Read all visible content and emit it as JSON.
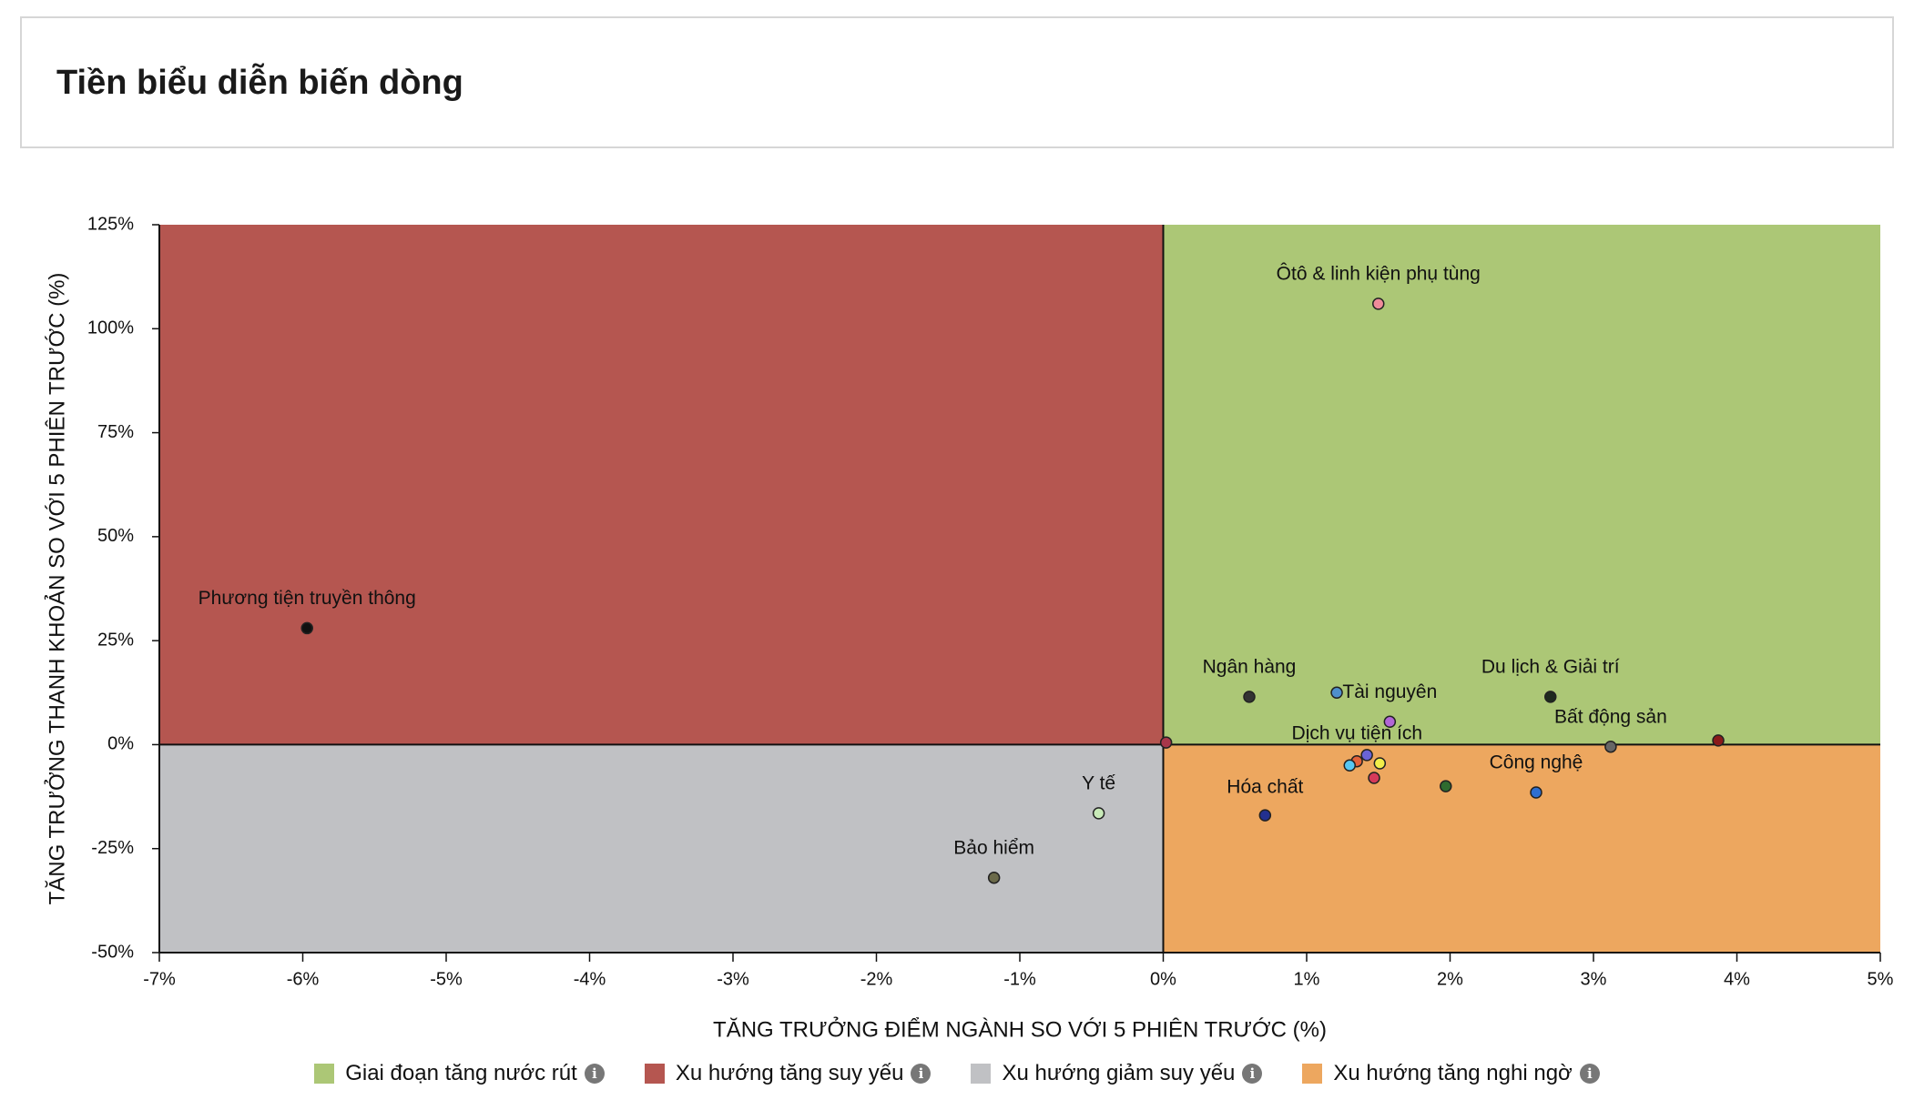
{
  "page": {
    "title": "Tiền biểu diễn biến dòng"
  },
  "colors": {
    "green": "#acc776",
    "red": "#b55650",
    "gray": "#c0c1c4",
    "orange": "#eda75f"
  },
  "chart_data": {
    "type": "scatter",
    "xlabel": "TĂNG TRƯỞNG ĐIỂM NGÀNH SO VỚI 5 PHIÊN TRƯỚC (%)",
    "ylabel": "TĂNG TRƯỞNG THANH KHOẢN SO VỚI 5 PHIÊN TRƯỚC (%)",
    "xlim": [
      -7,
      5
    ],
    "ylim": [
      -50,
      125
    ],
    "x_ticks": [
      -7,
      -6,
      -5,
      -4,
      -3,
      -2,
      -1,
      0,
      1,
      2,
      3,
      4,
      5
    ],
    "y_ticks": [
      125,
      100,
      75,
      50,
      25,
      0,
      -25,
      -50
    ],
    "x_tick_labels": [
      "-7%",
      "-6%",
      "-5%",
      "-4%",
      "-3%",
      "-2%",
      "-1%",
      "0%",
      "1%",
      "2%",
      "3%",
      "4%",
      "5%"
    ],
    "y_tick_labels": [
      "125%",
      "100%",
      "75%",
      "50%",
      "25%",
      "0%",
      "-25%",
      "-50%"
    ],
    "quadrants": [
      {
        "name": "Giai đoạn tăng nước rút",
        "color": "#acc776",
        "x": [
          0,
          5
        ],
        "y": [
          0,
          125
        ]
      },
      {
        "name": "Xu hướng tăng suy yếu",
        "color": "#b55650",
        "x": [
          -7,
          0
        ],
        "y": [
          0,
          125
        ]
      },
      {
        "name": "Xu hướng giảm suy yếu",
        "color": "#c0c1c4",
        "x": [
          -7,
          0
        ],
        "y": [
          -50,
          0
        ]
      },
      {
        "name": "Xu hướng tăng nghi ngờ",
        "color": "#eda75f",
        "x": [
          0,
          5
        ],
        "y": [
          -50,
          0
        ]
      }
    ],
    "legend_position": "bottom",
    "points": [
      {
        "label": "Ôtô & linh kiện phụ tùng",
        "x": 1.5,
        "y": 106,
        "color": "#f08c9a"
      },
      {
        "label": "Phương tiện truyền thông",
        "x": -5.97,
        "y": 28,
        "color": "#111111"
      },
      {
        "label": "Ngân hàng",
        "x": 0.6,
        "y": 11.5,
        "color": "#333333"
      },
      {
        "label": "Tài nguyên",
        "x": 1.58,
        "y": 5.5,
        "color": "#b266d6"
      },
      {
        "label": "Du lịch & Giải trí",
        "x": 2.7,
        "y": 11.5,
        "color": "#1e2a1e"
      },
      {
        "label": "Bất động sản",
        "x": 3.12,
        "y": -0.5,
        "color": "#666666"
      },
      {
        "label": "Dịch vụ tiện ích",
        "x": 1.51,
        "y": -4.5,
        "color": "#f2ee4a"
      },
      {
        "label": "Công nghệ",
        "x": 2.6,
        "y": -11.5,
        "color": "#2f6fd1"
      },
      {
        "label": "Hóa chất",
        "x": 0.71,
        "y": -17,
        "color": "#23308f"
      },
      {
        "label": "Y tế",
        "x": -0.45,
        "y": -16.5,
        "color": "#c8eab8"
      },
      {
        "label": "Bảo hiểm",
        "x": -1.18,
        "y": -32,
        "color": "#6b6a4a"
      },
      {
        "label": "",
        "x": 0.02,
        "y": 0.5,
        "color": "#a8374a"
      },
      {
        "label": "",
        "x": 1.21,
        "y": 12.5,
        "color": "#4f8fcc"
      },
      {
        "label": "",
        "x": 1.42,
        "y": -2.5,
        "color": "#6a63d6"
      },
      {
        "label": "",
        "x": 1.35,
        "y": -4.0,
        "color": "#e3623a"
      },
      {
        "label": "",
        "x": 1.3,
        "y": -5.0,
        "color": "#57c7f2"
      },
      {
        "label": "",
        "x": 1.47,
        "y": -8.0,
        "color": "#d63a5a"
      },
      {
        "label": "",
        "x": 1.97,
        "y": -10.0,
        "color": "#2f6b2f"
      },
      {
        "label": "",
        "x": 3.87,
        "y": 1.0,
        "color": "#8a1a1a"
      }
    ]
  }
}
